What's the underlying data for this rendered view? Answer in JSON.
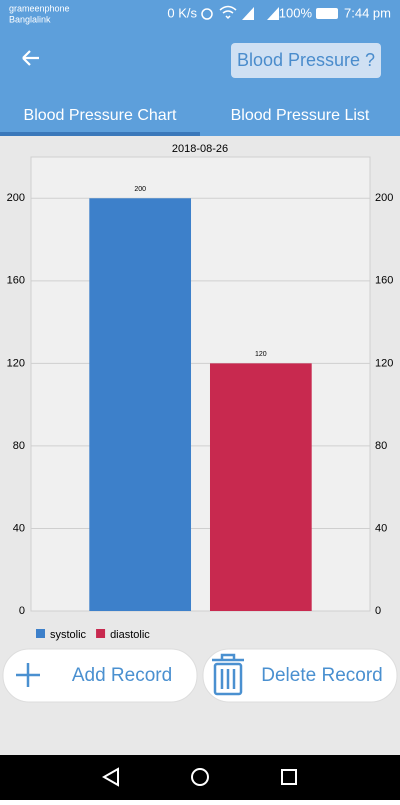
{
  "status_bar": {
    "carrier_1": "grameenphone",
    "carrier_2": "Banglalink",
    "speed": "0 K/s",
    "battery": "100%",
    "time": "7:44 pm"
  },
  "app_bar": {
    "title": "Blood Pressure ?"
  },
  "tabs": [
    "Blood Pressure Chart",
    "Blood Pressure List"
  ],
  "chart_data": {
    "type": "bar",
    "title": "2018-08-26",
    "categories": [
      null
    ],
    "series": [
      {
        "name": "systolic",
        "color": "#3d80ca",
        "values": [
          200
        ]
      },
      {
        "name": "diastolic",
        "color": "#c8294f",
        "values": [
          120
        ]
      }
    ],
    "ylim": [
      0,
      220
    ],
    "yticks": [
      0,
      40,
      80,
      120,
      160,
      200
    ],
    "grid": true
  },
  "buttons": [
    "Add Record",
    "Delete Record"
  ]
}
